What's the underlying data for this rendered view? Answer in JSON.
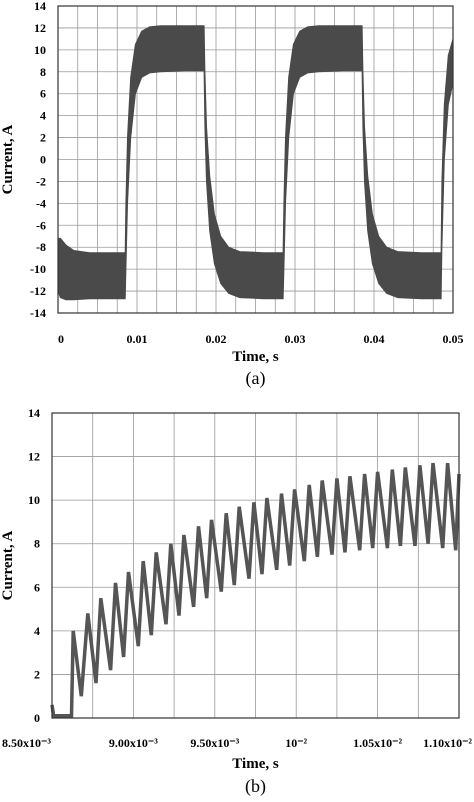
{
  "chart_data": [
    {
      "type": "area",
      "panel_label": "(a)",
      "xlabel": "Time, s",
      "ylabel": "Current, A",
      "xlim": [
        0,
        0.05
      ],
      "ylim": [
        -14,
        14
      ],
      "xticks": [
        0,
        0.01,
        0.02,
        0.03,
        0.04,
        0.05
      ],
      "xtick_labels": [
        "0",
        "0.01",
        "0.02",
        "0.03",
        "0.04",
        "0.05"
      ],
      "yticks": [
        -14,
        -12,
        -10,
        -8,
        -6,
        -4,
        -2,
        0,
        2,
        4,
        6,
        8,
        10,
        12,
        14
      ],
      "ytick_labels": [
        "-14",
        "-12",
        "-10",
        "-8",
        "-6",
        "-4",
        "-2",
        "0",
        "2",
        "4",
        "6",
        "8",
        "10",
        "12",
        "14"
      ],
      "grid": true,
      "series": [
        {
          "color": "#4a4a4a",
          "x": [
            0.0,
            0.0003,
            0.001,
            0.002,
            0.004,
            0.006,
            0.0085,
            0.0086,
            0.0088,
            0.0092,
            0.0098,
            0.0106,
            0.0116,
            0.013,
            0.016,
            0.0185,
            0.0186,
            0.0188,
            0.0192,
            0.0198,
            0.0206,
            0.0216,
            0.023,
            0.026,
            0.0285,
            0.0286,
            0.0288,
            0.0292,
            0.0298,
            0.0306,
            0.0316,
            0.033,
            0.036,
            0.0385,
            0.0386,
            0.0388,
            0.0392,
            0.0398,
            0.0406,
            0.0416,
            0.043,
            0.046,
            0.0485,
            0.0486,
            0.0489,
            0.0494,
            0.05
          ],
          "upper": [
            -7.2,
            -7.2,
            -7.8,
            -8.3,
            -8.5,
            -8.5,
            -8.5,
            -4.0,
            2.0,
            7.5,
            10.5,
            11.7,
            12.1,
            12.2,
            12.2,
            12.2,
            8.0,
            3.0,
            -1.5,
            -5.0,
            -7.0,
            -8.0,
            -8.4,
            -8.5,
            -8.5,
            -4.0,
            2.0,
            7.5,
            10.5,
            11.7,
            12.1,
            12.2,
            12.2,
            12.2,
            8.0,
            3.0,
            -1.5,
            -5.0,
            -7.0,
            -8.0,
            -8.4,
            -8.5,
            -8.5,
            -2.0,
            5.0,
            9.5,
            11.0
          ],
          "lower": [
            -12.0,
            -12.6,
            -12.8,
            -12.8,
            -12.7,
            -12.7,
            -12.7,
            -10.0,
            -4.0,
            2.0,
            6.0,
            7.5,
            7.9,
            8.0,
            8.1,
            8.1,
            3.0,
            -2.0,
            -6.5,
            -9.5,
            -11.3,
            -12.2,
            -12.6,
            -12.7,
            -12.7,
            -10.0,
            -4.0,
            2.0,
            6.0,
            7.5,
            7.9,
            8.0,
            8.1,
            8.1,
            3.0,
            -2.0,
            -6.5,
            -9.5,
            -11.3,
            -12.2,
            -12.6,
            -12.7,
            -12.7,
            -8.0,
            0.0,
            5.0,
            7.0
          ]
        }
      ]
    },
    {
      "type": "line",
      "panel_label": "(b)",
      "xlabel": "Time, s",
      "ylabel": "Current, A",
      "xlim": [
        0.0085,
        0.011
      ],
      "ylim": [
        0,
        14
      ],
      "xticks": [
        0.0085,
        0.009,
        0.0095,
        0.01,
        0.0105,
        0.011
      ],
      "xtick_labels": [
        "8.50x10⁻³",
        "9.00x10⁻³",
        "9.50x10⁻³",
        "10⁻²",
        "1.05x10⁻²",
        "1.10x10⁻²"
      ],
      "yticks": [
        0,
        2,
        4,
        6,
        8,
        10,
        12,
        14
      ],
      "ytick_labels": [
        "0",
        "2",
        "4",
        "6",
        "8",
        "10",
        "12",
        "14"
      ],
      "grid": true,
      "series": [
        {
          "color": "#555555",
          "x": [
            0.0085,
            0.00851,
            0.00856,
            0.00857,
            0.00862,
            0.00863,
            0.00868,
            0.00872,
            0.00877,
            0.0088,
            0.00886,
            0.00889,
            0.00894,
            0.00897,
            0.00903,
            0.00906,
            0.00911,
            0.00914,
            0.0092,
            0.00923,
            0.00928,
            0.00931,
            0.00937,
            0.0094,
            0.00945,
            0.00948,
            0.00954,
            0.00957,
            0.00962,
            0.00965,
            0.00971,
            0.00974,
            0.00979,
            0.00982,
            0.00988,
            0.00991,
            0.00996,
            0.00999,
            0.01005,
            0.01008,
            0.01013,
            0.01016,
            0.01022,
            0.01025,
            0.0103,
            0.01033,
            0.01039,
            0.01042,
            0.01047,
            0.0105,
            0.01056,
            0.01059,
            0.01064,
            0.01067,
            0.01073,
            0.01076,
            0.01081,
            0.01084,
            0.0109,
            0.01093,
            0.01098,
            0.011
          ],
          "y": [
            0.6,
            0.1,
            0.1,
            0.1,
            0.1,
            4.0,
            1.0,
            4.8,
            1.6,
            5.5,
            2.2,
            6.2,
            2.8,
            6.7,
            3.3,
            7.2,
            3.8,
            7.6,
            4.3,
            8.0,
            4.7,
            8.4,
            5.1,
            8.8,
            5.5,
            9.1,
            5.8,
            9.4,
            6.1,
            9.7,
            6.4,
            9.9,
            6.6,
            10.1,
            6.8,
            10.3,
            7.0,
            10.5,
            7.2,
            10.7,
            7.4,
            10.9,
            7.5,
            11.0,
            7.6,
            11.1,
            7.7,
            11.2,
            7.8,
            11.3,
            7.8,
            11.4,
            7.9,
            11.5,
            7.9,
            11.6,
            8.0,
            11.7,
            7.8,
            11.7,
            7.7,
            11.2
          ]
        }
      ]
    }
  ]
}
